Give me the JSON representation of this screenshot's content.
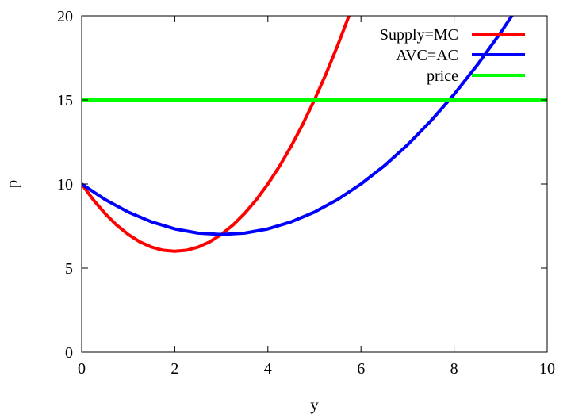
{
  "chart_data": {
    "type": "line",
    "xlabel": "y",
    "ylabel": "p",
    "xlim": [
      0,
      10
    ],
    "ylim": [
      0,
      20
    ],
    "xticks": [
      0,
      2,
      4,
      6,
      8,
      10
    ],
    "yticks": [
      0,
      5,
      10,
      15,
      20
    ],
    "x_tick_labels": [
      "0",
      "2",
      "4",
      "6",
      "8",
      "10"
    ],
    "y_tick_labels": [
      "0",
      "5",
      "10",
      "15",
      "20"
    ],
    "grid": false,
    "legend_position": "top-right",
    "series": [
      {
        "name": "Supply=MC",
        "color": "#ff0000",
        "x": [
          0,
          0.25,
          0.5,
          0.75,
          1,
          1.25,
          1.5,
          1.75,
          2,
          2.25,
          2.5,
          2.75,
          3,
          3.25,
          3.5,
          3.75,
          4,
          4.25,
          4.5,
          4.75,
          5,
          5.25,
          5.5,
          5.75
        ],
        "y": [
          10,
          9.06,
          8.25,
          7.56,
          7.0,
          6.56,
          6.25,
          6.06,
          6.0,
          6.06,
          6.25,
          6.56,
          7.0,
          7.56,
          8.25,
          9.06,
          10.0,
          11.06,
          12.25,
          13.56,
          15.0,
          16.56,
          18.25,
          20.06
        ]
      },
      {
        "name": "AVC=AC",
        "color": "#0000ff",
        "x": [
          0,
          0.5,
          1,
          1.5,
          2,
          2.5,
          3,
          3.5,
          4,
          4.5,
          5,
          5.5,
          6,
          6.5,
          7,
          7.5,
          8,
          8.5,
          9,
          9.3
        ],
        "y": [
          10,
          9.08,
          8.33,
          7.75,
          7.33,
          7.08,
          7.0,
          7.08,
          7.33,
          7.75,
          8.33,
          9.08,
          10.0,
          11.08,
          12.33,
          13.75,
          15.33,
          17.08,
          19.0,
          20.24
        ]
      },
      {
        "name": "price",
        "color": "#00ff00",
        "x": [
          0,
          10
        ],
        "y": [
          15,
          15
        ]
      }
    ]
  }
}
